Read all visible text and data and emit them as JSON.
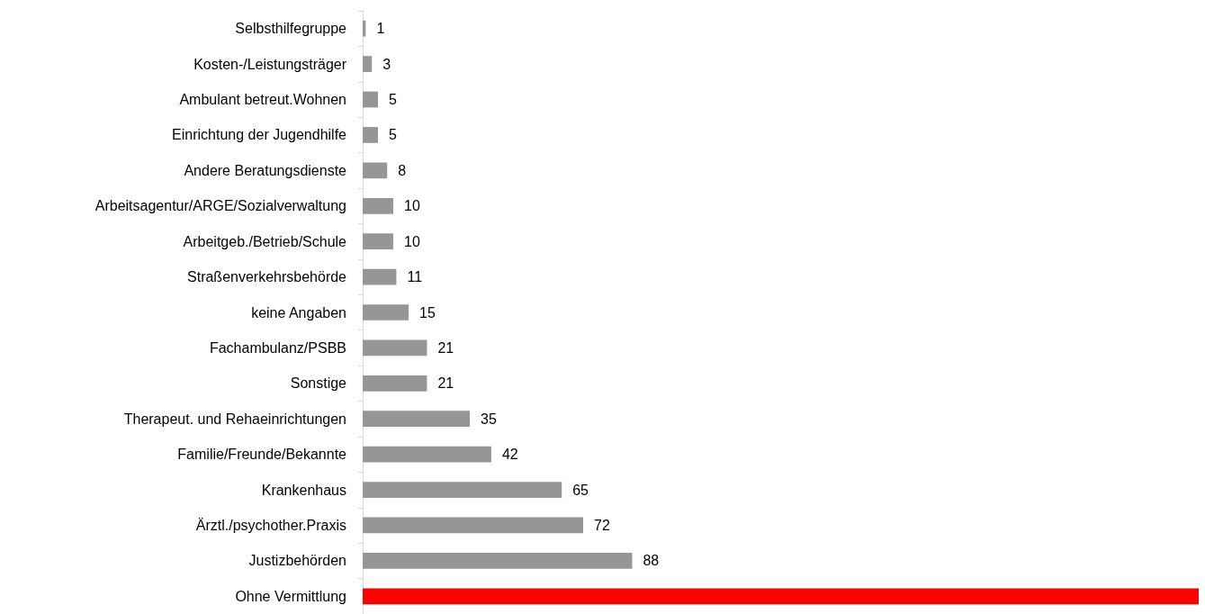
{
  "chart_data": {
    "type": "bar",
    "orientation": "horizontal",
    "categories": [
      "Selbsthilfegruppe",
      "Kosten-/Leistungsträger",
      "Ambulant betreut.Wohnen",
      "Einrichtung der Jugendhilfe",
      "Andere Beratungsdienste",
      "Arbeitsagentur/ARGE/Sozialverwaltung",
      "Arbeitgeb./Betrieb/Schule",
      "Straßenverkehrsbehörde",
      "keine Angaben",
      "Fachambulanz/PSBB",
      "Sonstige",
      "Therapeut. und Rehaeinrichtungen",
      "Familie/Freunde/Bekannte",
      "Krankenhaus",
      "Ärztl./psychother.Praxis",
      "Justizbehörden",
      "Ohne Vermittlung"
    ],
    "values": [
      1,
      3,
      5,
      5,
      8,
      10,
      10,
      11,
      15,
      21,
      21,
      35,
      42,
      65,
      72,
      88,
      273
    ],
    "value_labels": [
      "1",
      "3",
      "5",
      "5",
      "8",
      "10",
      "10",
      "11",
      "15",
      "21",
      "21",
      "35",
      "42",
      "65",
      "72",
      "88",
      null
    ],
    "colors": [
      "#969696",
      "#969696",
      "#969696",
      "#969696",
      "#969696",
      "#969696",
      "#969696",
      "#969696",
      "#969696",
      "#969696",
      "#969696",
      "#969696",
      "#969696",
      "#969696",
      "#969696",
      "#969696",
      "#ff0000"
    ]
  }
}
